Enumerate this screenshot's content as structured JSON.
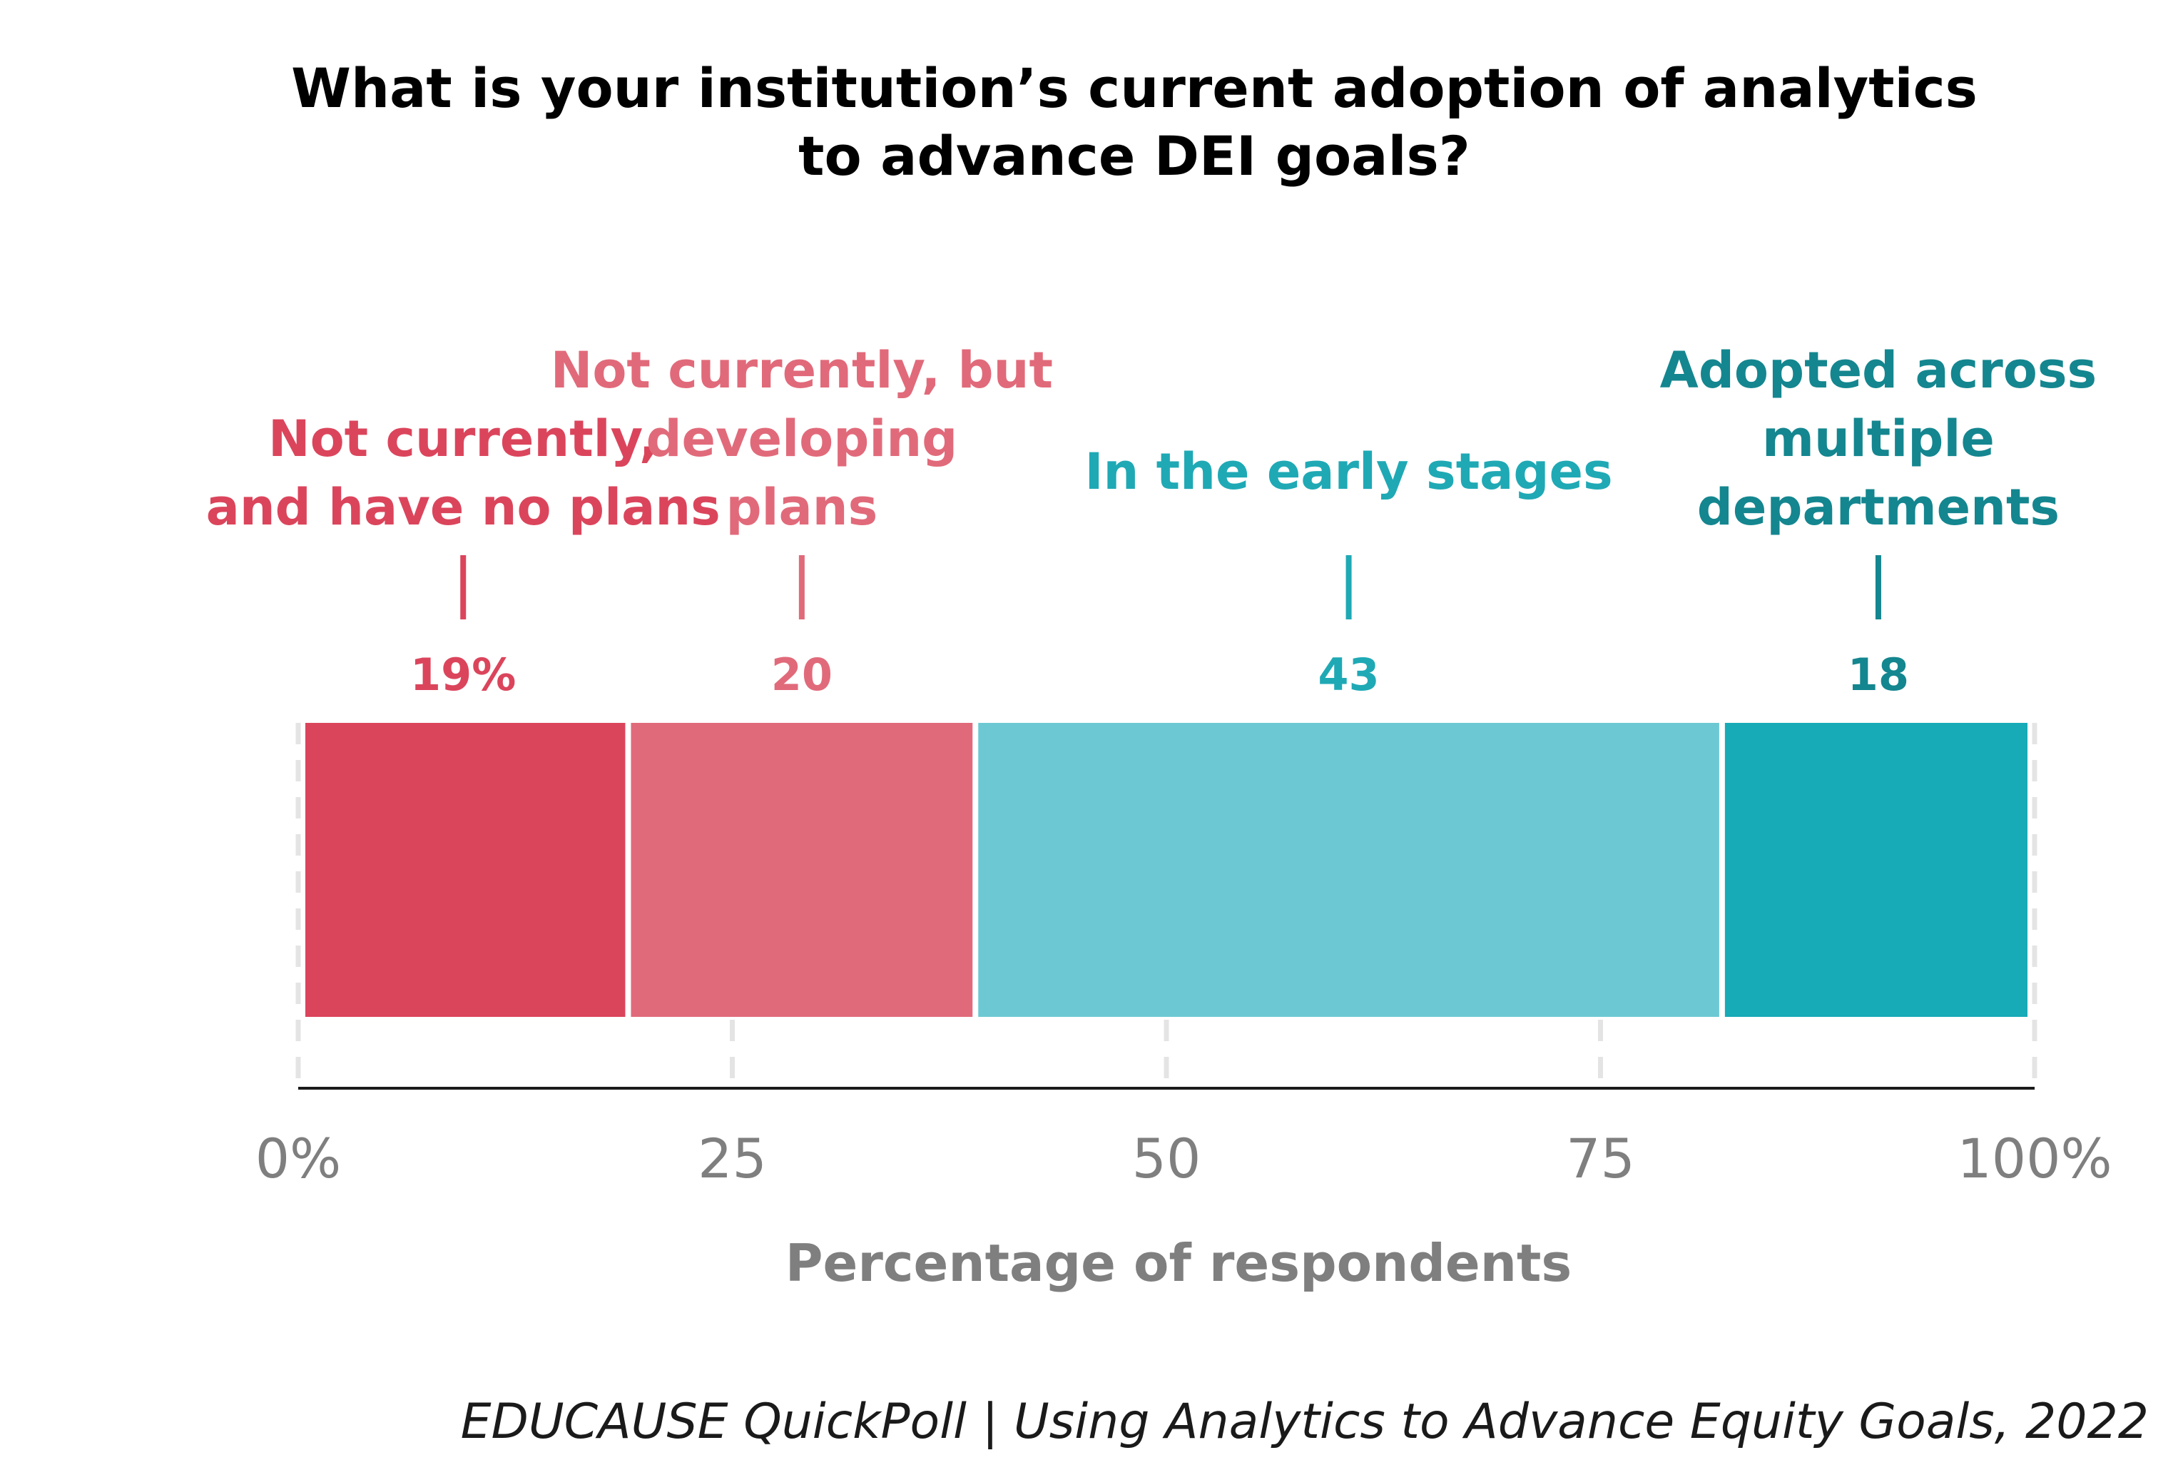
{
  "chart_data": {
    "type": "bar",
    "orientation": "horizontal",
    "stacked": true,
    "title_lines": [
      "What is your institution’s current adoption of analytics",
      "to advance DEI goals?"
    ],
    "segments": [
      {
        "name": "Not currently, and have no plans",
        "label_lines": [
          "Not currently,",
          "and have no plans"
        ],
        "value": 19,
        "value_label": "19%",
        "color": "#DB455C"
      },
      {
        "name": "Not currently, but developing plans",
        "label_lines": [
          "Not currently, but",
          "developing",
          "plans"
        ],
        "value": 20,
        "value_label": "20",
        "color": "#E16A7A"
      },
      {
        "name": "In the early stages",
        "label_lines": [
          "In the early stages"
        ],
        "value": 43,
        "value_label": "43",
        "color": "#6CC9D3"
      },
      {
        "name": "Adopted across multiple departments",
        "label_lines": [
          "Adopted across",
          "multiple",
          "departments"
        ],
        "value": 18,
        "value_label": "18",
        "color": "#17AAB7"
      }
    ],
    "label_colors": [
      "#DB455C",
      "#E16A7A",
      "#1FA9B5",
      "#14868F"
    ],
    "xlim": [
      0,
      100
    ],
    "x_ticks": [
      {
        "value": 0,
        "label": "0%"
      },
      {
        "value": 25,
        "label": "25"
      },
      {
        "value": 50,
        "label": "50"
      },
      {
        "value": 75,
        "label": "75"
      },
      {
        "value": 100,
        "label": "100%"
      }
    ],
    "xlabel": "Percentage of respondents",
    "grid": true,
    "legend": "none"
  },
  "source": "EDUCAUSE QuickPoll | Using Analytics to Advance Equity Goals, 2022"
}
